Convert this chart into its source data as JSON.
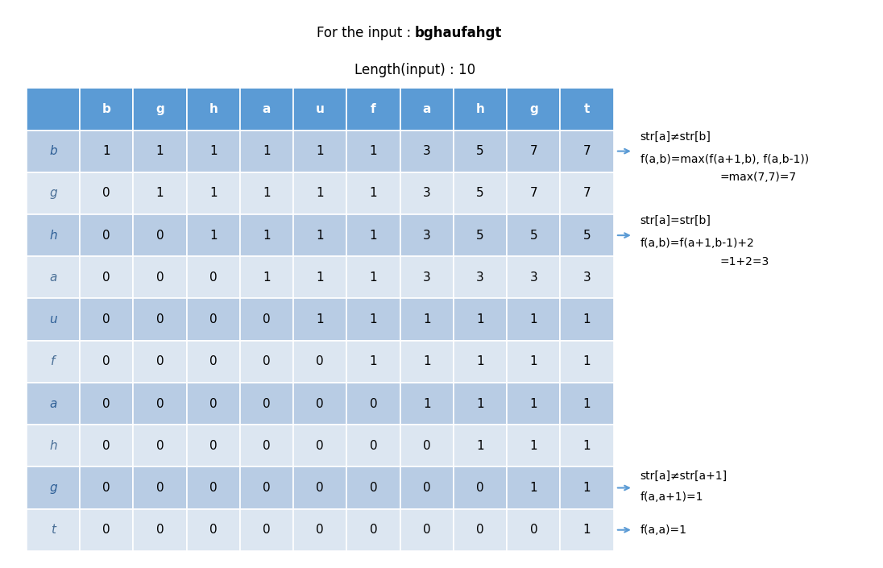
{
  "title1": "For the input : ",
  "title1_bold": "bghaufahgt",
  "title2": "Length(input) : 10",
  "col_headers": [
    "b",
    "g",
    "h",
    "a",
    "u",
    "f",
    "a",
    "h",
    "g",
    "t"
  ],
  "row_headers": [
    "b",
    "g",
    "h",
    "a",
    "u",
    "f",
    "a",
    "h",
    "g",
    "t"
  ],
  "table_data": [
    [
      1,
      1,
      1,
      1,
      1,
      1,
      3,
      5,
      7,
      7
    ],
    [
      0,
      1,
      1,
      1,
      1,
      1,
      3,
      5,
      7,
      7
    ],
    [
      0,
      0,
      1,
      1,
      1,
      1,
      3,
      5,
      5,
      5
    ],
    [
      0,
      0,
      0,
      1,
      1,
      1,
      3,
      3,
      3,
      3
    ],
    [
      0,
      0,
      0,
      0,
      1,
      1,
      1,
      1,
      1,
      1
    ],
    [
      0,
      0,
      0,
      0,
      0,
      1,
      1,
      1,
      1,
      1
    ],
    [
      0,
      0,
      0,
      0,
      0,
      0,
      1,
      1,
      1,
      1
    ],
    [
      0,
      0,
      0,
      0,
      0,
      0,
      0,
      1,
      1,
      1
    ],
    [
      0,
      0,
      0,
      0,
      0,
      0,
      0,
      0,
      1,
      1
    ],
    [
      0,
      0,
      0,
      0,
      0,
      0,
      0,
      0,
      0,
      1
    ]
  ],
  "header_bg": "#5b9bd5",
  "row_header_dark_bg": "#b8cce4",
  "row_header_light_bg": "#dce6f1",
  "even_row_bg": "#b8cce4",
  "odd_row_bg": "#dce6f1",
  "header_text_color": "#ffffff",
  "row_header_dark_text": "#3d6da8",
  "row_header_light_text": "#5a7fa8",
  "cell_text_color": "#000000",
  "annotation1_lines": [
    "str[a]≠str[b]",
    "f(a,b)=max(f(a+1,b), f(a,b-1))",
    "=max(7,7)=7"
  ],
  "annotation2_lines": [
    "str[a]=str[b]",
    "f(a,b)=f(a+1,b-1)+2",
    "=1+2=3"
  ],
  "annotation3_lines": [
    "str[a]≠str[a+1]",
    "f(a,a+1)=1"
  ],
  "annotation4_lines": [
    "f(a,a)=1"
  ],
  "arrow_color": "#5b9bd5",
  "bg_color": "#ffffff",
  "font_size_title": 12,
  "font_size_header": 11,
  "font_size_cell": 11,
  "font_size_annot": 10
}
